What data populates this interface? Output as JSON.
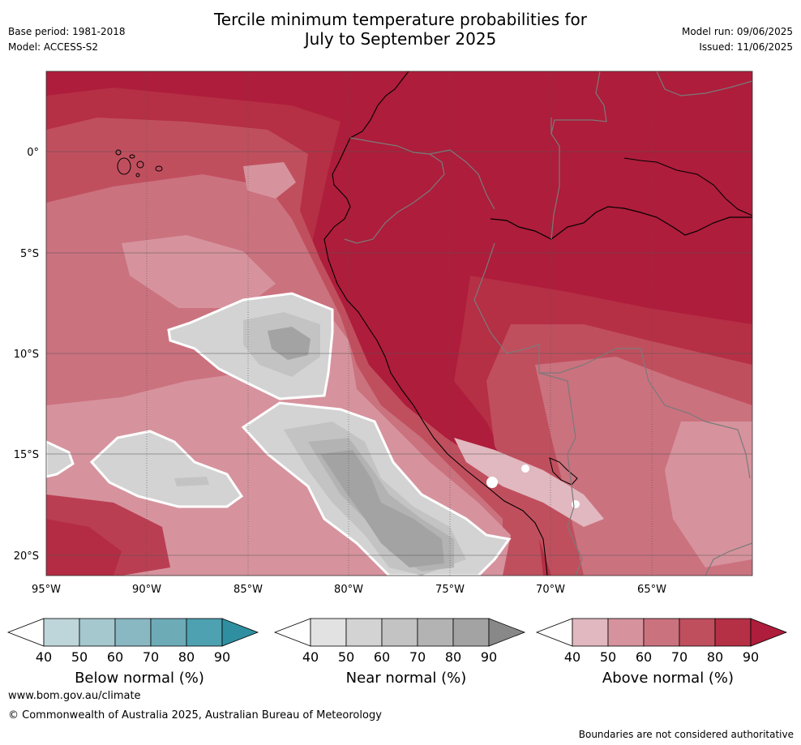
{
  "header": {
    "title_line1": "Tercile minimum temperature probabilities for",
    "title_line2": "July to September 2025",
    "base_period": "Base period: 1981-2018",
    "model": "Model: ACCESS-S2",
    "model_run": "Model run: 09/06/2025",
    "issued": "Issued: 11/06/2025"
  },
  "map": {
    "lat_labels": [
      "0°",
      "5°S",
      "10°S",
      "15°S",
      "20°S"
    ],
    "lon_labels": [
      "95°W",
      "90°W",
      "85°W",
      "80°W",
      "75°W",
      "70°W",
      "65°W"
    ],
    "dominant_category": "Above normal",
    "dominant_probability_band": "90+"
  },
  "legend": [
    {
      "title": "Below normal (%)",
      "ticks": [
        "40",
        "50",
        "60",
        "70",
        "80",
        "90"
      ],
      "colors": [
        "#bed5da",
        "#a5c7ce",
        "#89b8c3",
        "#6dabb7",
        "#4ea1b0",
        "#2f8fa0"
      ]
    },
    {
      "title": "Near normal (%)",
      "ticks": [
        "40",
        "50",
        "60",
        "70",
        "80",
        "90"
      ],
      "colors": [
        "#e2e2e2",
        "#d3d3d3",
        "#c3c3c3",
        "#b3b3b3",
        "#a3a3a3",
        "#888888"
      ]
    },
    {
      "title": "Above normal (%)",
      "ticks": [
        "40",
        "50",
        "60",
        "70",
        "80",
        "90"
      ],
      "colors": [
        "#e1b8bf",
        "#d6939d",
        "#cb727f",
        "#c04f5e",
        "#b52f45",
        "#ae1d3b"
      ]
    }
  ],
  "footer": {
    "website": "www.bom.gov.au/climate",
    "copyright": "© Commonwealth of Australia 2025, Australian Bureau of Meteorology",
    "disclaimer": "Boundaries are not considered authoritative"
  }
}
